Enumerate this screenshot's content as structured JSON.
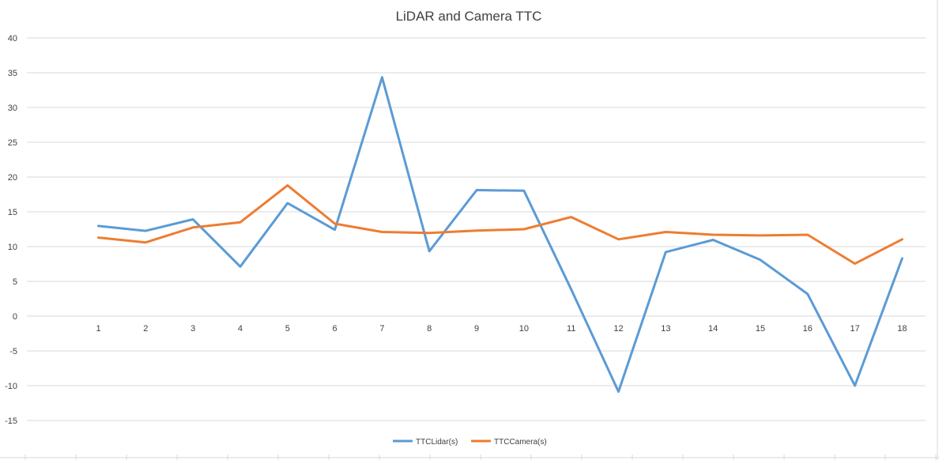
{
  "chart_data": {
    "type": "line",
    "title": "LiDAR and Camera TTC",
    "xlabel": "",
    "ylabel": "",
    "categories": [
      "1",
      "2",
      "3",
      "4",
      "5",
      "6",
      "7",
      "8",
      "9",
      "10",
      "11",
      "12",
      "13",
      "14",
      "15",
      "16",
      "17",
      "18"
    ],
    "ylim": [
      -15,
      40
    ],
    "yticks": [
      40,
      35,
      30,
      25,
      20,
      15,
      10,
      5,
      0,
      -5,
      -10,
      -15
    ],
    "grid": true,
    "legend_position": "bottom",
    "series": [
      {
        "name": "TTCLidar(s)",
        "color": "#5b9bd5",
        "values": [
          12.97,
          12.26,
          13.92,
          7.12,
          16.25,
          12.42,
          34.34,
          9.34,
          18.13,
          18.03,
          3.84,
          -10.85,
          9.22,
          10.97,
          8.09,
          3.18,
          -9.99,
          8.31
        ]
      },
      {
        "name": "TTCCamera(s)",
        "color": "#ed7d31",
        "values": [
          11.3,
          10.6,
          12.75,
          13.5,
          18.8,
          13.3,
          12.1,
          11.95,
          12.3,
          12.5,
          14.25,
          11.05,
          12.1,
          11.7,
          11.6,
          11.7,
          7.55,
          11.05
        ]
      }
    ]
  }
}
